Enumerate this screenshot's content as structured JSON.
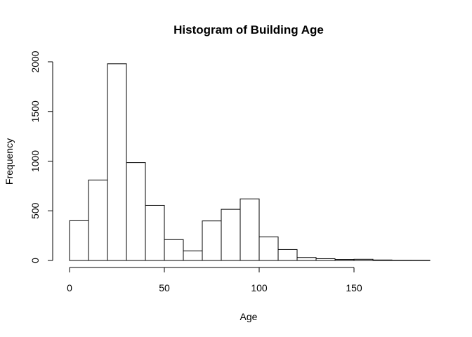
{
  "chart_data": {
    "type": "bar",
    "title": "Histogram of Building Age",
    "xlabel": "Age",
    "ylabel": "Frequency",
    "bin_edges": [
      0,
      10,
      20,
      30,
      40,
      50,
      60,
      70,
      80,
      90,
      100,
      110,
      120,
      130,
      140,
      150,
      160,
      170,
      180,
      190
    ],
    "values": [
      400,
      810,
      1980,
      985,
      555,
      210,
      97,
      398,
      515,
      620,
      238,
      110,
      30,
      18,
      10,
      12,
      5,
      3,
      3
    ],
    "xlim": [
      0,
      190
    ],
    "ylim": [
      0,
      2000
    ],
    "x_ticks": [
      0,
      50,
      100,
      150
    ],
    "y_ticks": [
      0,
      500,
      1000,
      1500,
      2000
    ],
    "x_tick_labels": [
      "0",
      "50",
      "100",
      "150"
    ],
    "y_tick_labels": [
      "0",
      "500",
      "1000",
      "1500",
      "2000"
    ],
    "grid": false,
    "legend": "none"
  }
}
